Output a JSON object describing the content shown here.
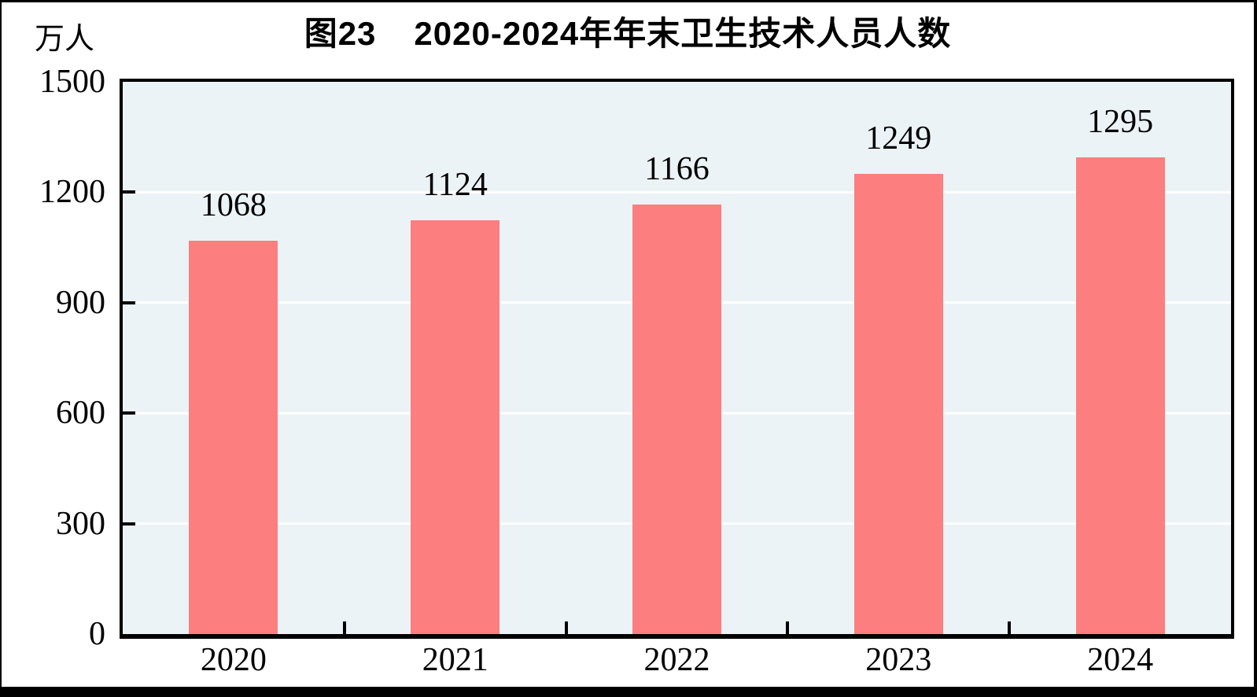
{
  "title": {
    "figure_label": "图23",
    "text": "2020-2024年年末卫生技术人员人数"
  },
  "chart_data": {
    "type": "bar",
    "title": "图23 2020-2024年年末卫生技术人员人数",
    "unit_label": "万人",
    "ylabel": "万人",
    "xlabel": "",
    "categories": [
      "2020",
      "2021",
      "2022",
      "2023",
      "2024"
    ],
    "values": [
      1068,
      1124,
      1166,
      1249,
      1295
    ],
    "value_labels": [
      "1068",
      "1124",
      "1166",
      "1249",
      "1295"
    ],
    "ylim": [
      0,
      1500
    ],
    "yticks": [
      0,
      300,
      600,
      900,
      1200,
      1500
    ],
    "grid": true,
    "legend": false,
    "colors": {
      "bar": "#FD7E7E",
      "plot_background": "#ECF3F6",
      "gridline": "#FFFFFF",
      "axis": "#000000",
      "text": "#000000"
    }
  }
}
